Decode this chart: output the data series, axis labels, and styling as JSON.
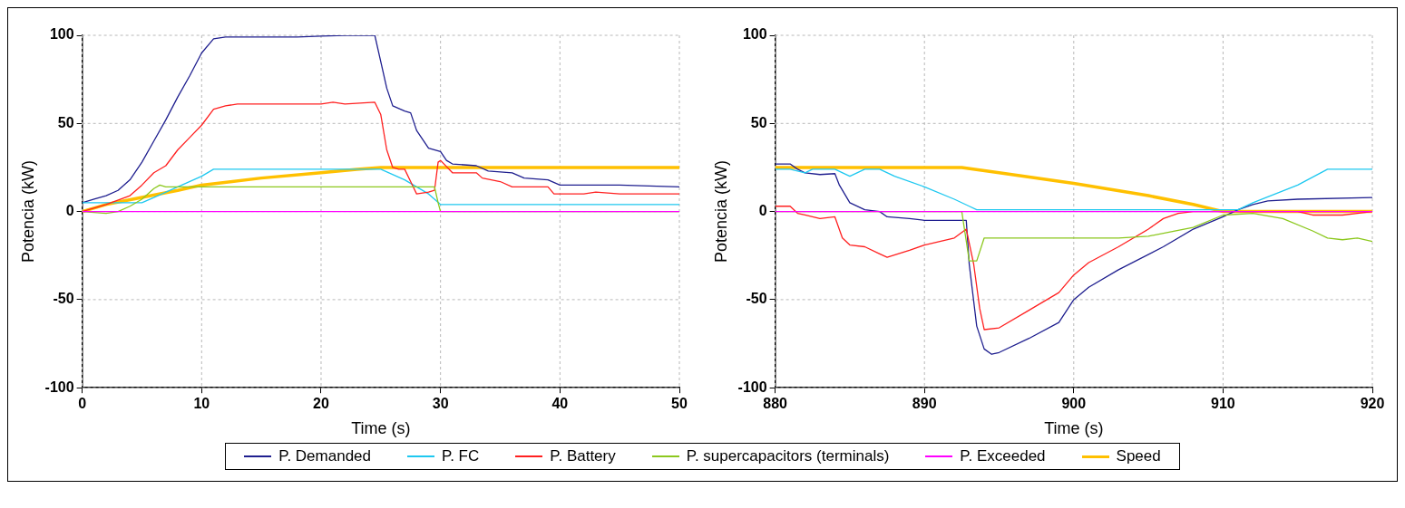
{
  "chart_data": [
    {
      "type": "line",
      "xlabel": "Time (s)",
      "ylabel": "Potencia (kW)",
      "xlim": [
        0,
        50
      ],
      "xticks": [
        0,
        10,
        20,
        30,
        40,
        50
      ],
      "ylim": [
        -100,
        100
      ],
      "yticks": [
        -100,
        -50,
        0,
        50,
        100
      ],
      "grid": true,
      "legend": "bottom",
      "marker": "none",
      "line_style": "solid",
      "series": [
        {
          "name": "P. Demanded",
          "color": "#1f1f8f",
          "x": [
            0,
            1,
            2,
            3,
            4,
            5,
            6,
            7,
            8,
            9,
            10,
            11,
            12,
            15,
            18,
            20,
            22,
            24.5,
            25,
            25.5,
            26,
            27,
            27.5,
            28,
            29,
            30,
            30.5,
            31,
            33,
            34,
            36,
            37,
            39,
            40,
            45,
            50
          ],
          "values": [
            5,
            7,
            9,
            12,
            18,
            28,
            40,
            52,
            65,
            77,
            90,
            98,
            99,
            99,
            99,
            99.5,
            100,
            100,
            85,
            70,
            60,
            57,
            56,
            46,
            36,
            34,
            29,
            27,
            26,
            23,
            22,
            19,
            18,
            15,
            15,
            14
          ]
        },
        {
          "name": "P. FC",
          "color": "#1ec8f0",
          "x": [
            0,
            5,
            6,
            8,
            10,
            11,
            25,
            27,
            29,
            30,
            31,
            33,
            50
          ],
          "values": [
            5,
            5,
            8,
            14,
            20,
            24,
            24,
            18,
            10,
            4,
            4,
            4,
            4
          ]
        },
        {
          "name": "P. Battery",
          "color": "#ff2020",
          "x": [
            0,
            2,
            4,
            5,
            6,
            7,
            8,
            9,
            10,
            11,
            12,
            13,
            20,
            21,
            22,
            24.5,
            25,
            25.5,
            26,
            26.5,
            27,
            27.5,
            28,
            29,
            29.5,
            29.8,
            30,
            31,
            33,
            33.5,
            35,
            36,
            39,
            39.5,
            42,
            43,
            45,
            50
          ],
          "values": [
            0,
            4,
            9,
            15,
            22,
            26,
            35,
            42,
            49,
            58,
            60,
            61,
            61,
            62,
            61,
            62,
            55,
            35,
            25,
            24,
            24,
            17,
            10,
            11,
            12,
            28,
            29,
            22,
            22,
            19,
            17,
            14,
            14,
            10,
            10,
            11,
            10,
            10
          ]
        },
        {
          "name": "P. supercapacitors (terminals)",
          "color": "#8cc81e",
          "x": [
            0,
            2,
            3,
            4,
            5,
            6,
            6.5,
            7,
            10,
            29.5,
            29.8,
            30,
            50
          ],
          "values": [
            0,
            -1,
            0,
            3,
            7,
            13,
            15,
            14,
            14,
            14,
            5,
            0,
            0
          ]
        },
        {
          "name": "P. Exceeded",
          "color": "#ff00ff",
          "x": [
            0,
            50
          ],
          "values": [
            0,
            0
          ]
        },
        {
          "name": "Speed",
          "color": "#ffc000",
          "x": [
            0,
            2,
            5,
            8,
            10,
            15,
            20,
            23,
            25,
            50
          ],
          "values": [
            0,
            4,
            8,
            12,
            15,
            19,
            22,
            24,
            25,
            25
          ]
        }
      ]
    },
    {
      "type": "line",
      "xlabel": "Time (s)",
      "ylabel": "Potencia (kW)",
      "xlim": [
        880,
        920
      ],
      "xticks": [
        880,
        890,
        900,
        910,
        920
      ],
      "ylim": [
        -100,
        100
      ],
      "yticks": [
        -100,
        -50,
        0,
        50,
        100
      ],
      "grid": true,
      "marker": "none",
      "line_style": "solid",
      "series": [
        {
          "color": "#1f1f8f",
          "x": [
            880,
            881,
            881.5,
            882,
            883,
            884,
            884.3,
            885,
            886,
            887,
            887.5,
            889,
            890,
            892,
            892.8,
            893,
            893.5,
            894,
            894.5,
            895,
            897,
            899,
            900,
            901,
            903,
            906,
            908,
            910,
            911,
            912,
            913,
            915,
            920
          ],
          "values": [
            27,
            27,
            24,
            22,
            21,
            21.5,
            15,
            5,
            1,
            0,
            -3,
            -4,
            -5,
            -5,
            -5,
            -30,
            -65,
            -78,
            -81,
            -80,
            -72,
            -63,
            -50,
            -43,
            -33,
            -20,
            -10,
            -3,
            1,
            4,
            6,
            7,
            8
          ]
        },
        {
          "color": "#1ec8f0",
          "x": [
            880,
            881,
            882,
            882.5,
            884,
            885,
            886,
            887,
            888,
            890,
            892,
            893,
            893.5,
            910,
            911,
            912,
            915,
            917,
            920
          ],
          "values": [
            24,
            24,
            22,
            24,
            24,
            20,
            24,
            24,
            20,
            14,
            7,
            3,
            1,
            1,
            1,
            5,
            15,
            24,
            24
          ]
        },
        {
          "color": "#ff2020",
          "x": [
            880,
            881,
            881.5,
            882,
            883,
            884,
            884.5,
            885,
            886,
            887,
            887.5,
            889,
            890,
            892,
            892.8,
            893.3,
            893.7,
            894,
            895,
            897,
            899,
            900,
            901,
            903,
            905,
            906,
            907,
            908,
            915,
            916,
            918,
            919,
            920
          ],
          "values": [
            3,
            3,
            -1,
            -2,
            -4,
            -3,
            -15,
            -19,
            -20,
            -24,
            -26,
            -22,
            -19,
            -15,
            -10,
            -30,
            -55,
            -67,
            -66,
            -56,
            -46,
            -36,
            -29,
            -20,
            -10,
            -4,
            -1,
            0,
            0,
            -2,
            -2,
            -1,
            0
          ]
        },
        {
          "color": "#8cc81e",
          "x": [
            880,
            892.5,
            893,
            893.5,
            894,
            903,
            905,
            908,
            910,
            912,
            914,
            916,
            917,
            918,
            919,
            920
          ],
          "values": [
            0,
            0,
            -28,
            -28,
            -15,
            -15,
            -14,
            -9,
            -2,
            -1,
            -4,
            -11,
            -15,
            -16,
            -15,
            -17
          ]
        },
        {
          "color": "#ff00ff",
          "x": [
            880,
            920
          ],
          "values": [
            0,
            0
          ]
        },
        {
          "color": "#ffc000",
          "x": [
            880,
            892.5,
            895,
            900,
            905,
            908,
            910,
            920
          ],
          "values": [
            25,
            25,
            22,
            16,
            9,
            4,
            0,
            0
          ]
        }
      ]
    }
  ]
}
